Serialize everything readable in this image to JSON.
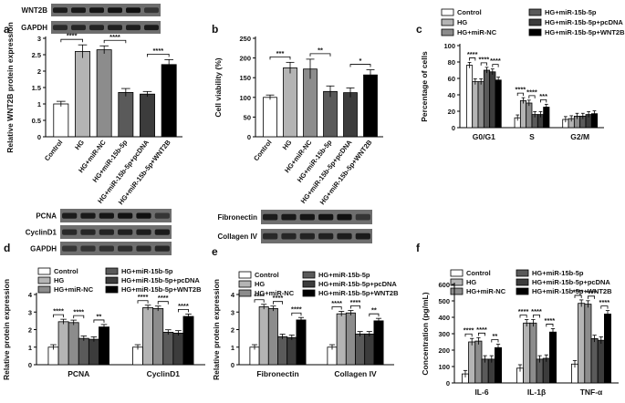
{
  "panel_labels": [
    "a",
    "b",
    "c",
    "d",
    "e",
    "f"
  ],
  "legend_conditions": [
    "Control",
    "HG",
    "HG+miR-NC",
    "HG+miR-15b-5p",
    "HG+miR-15b-5p+pcDNA",
    "HG+miR-15b-5p+WNT2B"
  ],
  "palette": {
    "Control": "#ffffff",
    "HG": "#b4b4b4",
    "HG+miR-NC": "#8c8c8c",
    "HG+miR-15b-5p": "#5a5a5a",
    "HG+miR-15b-5p+pcDNA": "#3c3c3c",
    "HG+miR-15b-5p+WNT2B": "#000000"
  },
  "blots": {
    "a": [
      "WNT2B",
      "GAPDH"
    ],
    "d": [
      "PCNA",
      "CyclinD1",
      "GAPDH"
    ],
    "e": [
      "Fibronectin",
      "Collagen IV"
    ]
  },
  "chart_data": [
    {
      "panel": "a",
      "type": "bar",
      "ylabel": "Relative WNT2B protein expression",
      "ylim": [
        0,
        3.0
      ],
      "yticks": [
        0,
        0.5,
        1.0,
        1.5,
        2.0,
        2.5,
        3.0
      ],
      "categories": [
        "Control",
        "HG",
        "HG+miR-NC",
        "HG+miR-15b-5p",
        "HG+miR-15b-5p+pcDNA",
        "HG+miR-15b-5p+WNT2B"
      ],
      "values": [
        1.0,
        2.6,
        2.65,
        1.35,
        1.3,
        2.2
      ],
      "errors": [
        0.08,
        0.2,
        0.12,
        0.12,
        0.08,
        0.15
      ],
      "significance": [
        {
          "from": 0,
          "to": 1,
          "label": "****"
        },
        {
          "from": 2,
          "to": 3,
          "label": "****"
        },
        {
          "from": 4,
          "to": 5,
          "label": "****"
        }
      ]
    },
    {
      "panel": "b",
      "type": "bar",
      "ylabel": "Cell viability (%)",
      "ylim": [
        0,
        250
      ],
      "yticks": [
        0,
        50,
        100,
        150,
        200,
        250
      ],
      "categories": [
        "Control",
        "HG",
        "HG+miR-NC",
        "HG+miR-15b-5p",
        "HG+miR-15b-5p+pcDNA",
        "HG+miR-15b-5p+WNT2B"
      ],
      "values": [
        100,
        175,
        172,
        115,
        112,
        157
      ],
      "errors": [
        6,
        14,
        25,
        14,
        12,
        13
      ],
      "significance": [
        {
          "from": 0,
          "to": 1,
          "label": "***"
        },
        {
          "from": 2,
          "to": 3,
          "label": "**"
        },
        {
          "from": 4,
          "to": 5,
          "label": "*"
        }
      ]
    },
    {
      "panel": "c",
      "type": "bar",
      "ylabel": "Percentage of cells",
      "ylim": [
        0,
        100
      ],
      "yticks": [
        0,
        20,
        40,
        60,
        80,
        100
      ],
      "categories": [
        "G0/G1",
        "S",
        "G2/M"
      ],
      "series": [
        {
          "name": "Control",
          "values": [
            76,
            12,
            10
          ]
        },
        {
          "name": "HG",
          "values": [
            56,
            33,
            11
          ]
        },
        {
          "name": "HG+miR-NC",
          "values": [
            56,
            30,
            14
          ]
        },
        {
          "name": "HG+miR-15b-5p",
          "values": [
            70,
            16,
            14
          ]
        },
        {
          "name": "HG+miR-15b-5p+pcDNA",
          "values": [
            68,
            16,
            16
          ]
        },
        {
          "name": "HG+miR-15b-5p+WNT2B",
          "values": [
            58,
            25,
            17
          ]
        }
      ],
      "significance": [
        {
          "group": 0,
          "from": 0,
          "to": 1,
          "label": "****"
        },
        {
          "group": 0,
          "from": 2,
          "to": 3,
          "label": "****"
        },
        {
          "group": 0,
          "from": 4,
          "to": 5,
          "label": "****"
        },
        {
          "group": 1,
          "from": 0,
          "to": 1,
          "label": "****"
        },
        {
          "group": 1,
          "from": 2,
          "to": 3,
          "label": "****"
        },
        {
          "group": 1,
          "from": 4,
          "to": 5,
          "label": "***"
        }
      ]
    },
    {
      "panel": "d",
      "type": "bar",
      "ylabel": "Relative protein expression",
      "ylim": [
        0,
        4
      ],
      "yticks": [
        0,
        1,
        2,
        3,
        4
      ],
      "categories": [
        "PCNA",
        "CyclinD1"
      ],
      "series": [
        {
          "name": "Control",
          "values": [
            1.0,
            1.0
          ]
        },
        {
          "name": "HG",
          "values": [
            2.45,
            3.25
          ]
        },
        {
          "name": "HG+miR-NC",
          "values": [
            2.4,
            3.2
          ]
        },
        {
          "name": "HG+miR-15b-5p",
          "values": [
            1.5,
            1.85
          ]
        },
        {
          "name": "HG+miR-15b-5p+pcDNA",
          "values": [
            1.45,
            1.8
          ]
        },
        {
          "name": "HG+miR-15b-5p+WNT2B",
          "values": [
            2.15,
            2.75
          ]
        }
      ],
      "significance": [
        {
          "group": 0,
          "from": 0,
          "to": 1,
          "label": "****"
        },
        {
          "group": 0,
          "from": 2,
          "to": 3,
          "label": "****"
        },
        {
          "group": 0,
          "from": 4,
          "to": 5,
          "label": "**"
        },
        {
          "group": 1,
          "from": 0,
          "to": 1,
          "label": "****"
        },
        {
          "group": 1,
          "from": 2,
          "to": 3,
          "label": "****"
        },
        {
          "group": 1,
          "from": 4,
          "to": 5,
          "label": "****"
        }
      ]
    },
    {
      "panel": "e",
      "type": "bar",
      "ylabel": "Relative protein expression",
      "ylim": [
        0,
        4
      ],
      "yticks": [
        0,
        1,
        2,
        3,
        4
      ],
      "categories": [
        "Fibronectin",
        "Collagen IV"
      ],
      "series": [
        {
          "name": "Control",
          "values": [
            1.0,
            1.0
          ]
        },
        {
          "name": "HG",
          "values": [
            3.3,
            2.9
          ]
        },
        {
          "name": "HG+miR-NC",
          "values": [
            3.2,
            2.95
          ]
        },
        {
          "name": "HG+miR-15b-5p",
          "values": [
            1.6,
            1.75
          ]
        },
        {
          "name": "HG+miR-15b-5p+pcDNA",
          "values": [
            1.55,
            1.75
          ]
        },
        {
          "name": "HG+miR-15b-5p+WNT2B",
          "values": [
            2.55,
            2.5
          ]
        }
      ],
      "significance": [
        {
          "group": 0,
          "from": 0,
          "to": 1,
          "label": "****"
        },
        {
          "group": 0,
          "from": 2,
          "to": 3,
          "label": "****"
        },
        {
          "group": 0,
          "from": 4,
          "to": 5,
          "label": "****"
        },
        {
          "group": 1,
          "from": 0,
          "to": 1,
          "label": "****"
        },
        {
          "group": 1,
          "from": 2,
          "to": 3,
          "label": "****"
        },
        {
          "group": 1,
          "from": 4,
          "to": 5,
          "label": "**"
        }
      ]
    },
    {
      "panel": "f",
      "type": "bar",
      "ylabel": "Concentration (pg/mL)",
      "ylim": [
        0,
        600
      ],
      "yticks": [
        0,
        100,
        200,
        300,
        400,
        500,
        600
      ],
      "categories": [
        "IL-6",
        "IL-1β",
        "TNF-α"
      ],
      "series": [
        {
          "name": "Control",
          "values": [
            55,
            90,
            115
          ]
        },
        {
          "name": "HG",
          "values": [
            250,
            365,
            485
          ]
        },
        {
          "name": "HG+miR-NC",
          "values": [
            255,
            365,
            480
          ]
        },
        {
          "name": "HG+miR-15b-5p",
          "values": [
            145,
            145,
            270
          ]
        },
        {
          "name": "HG+miR-15b-5p+pcDNA",
          "values": [
            145,
            150,
            260
          ]
        },
        {
          "name": "HG+miR-15b-5p+WNT2B",
          "values": [
            215,
            310,
            420
          ]
        }
      ],
      "significance": [
        {
          "group": 0,
          "from": 0,
          "to": 1,
          "label": "****"
        },
        {
          "group": 0,
          "from": 2,
          "to": 3,
          "label": "****"
        },
        {
          "group": 0,
          "from": 4,
          "to": 5,
          "label": "**"
        },
        {
          "group": 1,
          "from": 0,
          "to": 1,
          "label": "****"
        },
        {
          "group": 1,
          "from": 2,
          "to": 3,
          "label": "****"
        },
        {
          "group": 1,
          "from": 4,
          "to": 5,
          "label": "****"
        },
        {
          "group": 2,
          "from": 0,
          "to": 1,
          "label": "****"
        },
        {
          "group": 2,
          "from": 2,
          "to": 3,
          "label": "****"
        },
        {
          "group": 2,
          "from": 4,
          "to": 5,
          "label": "****"
        }
      ]
    }
  ]
}
